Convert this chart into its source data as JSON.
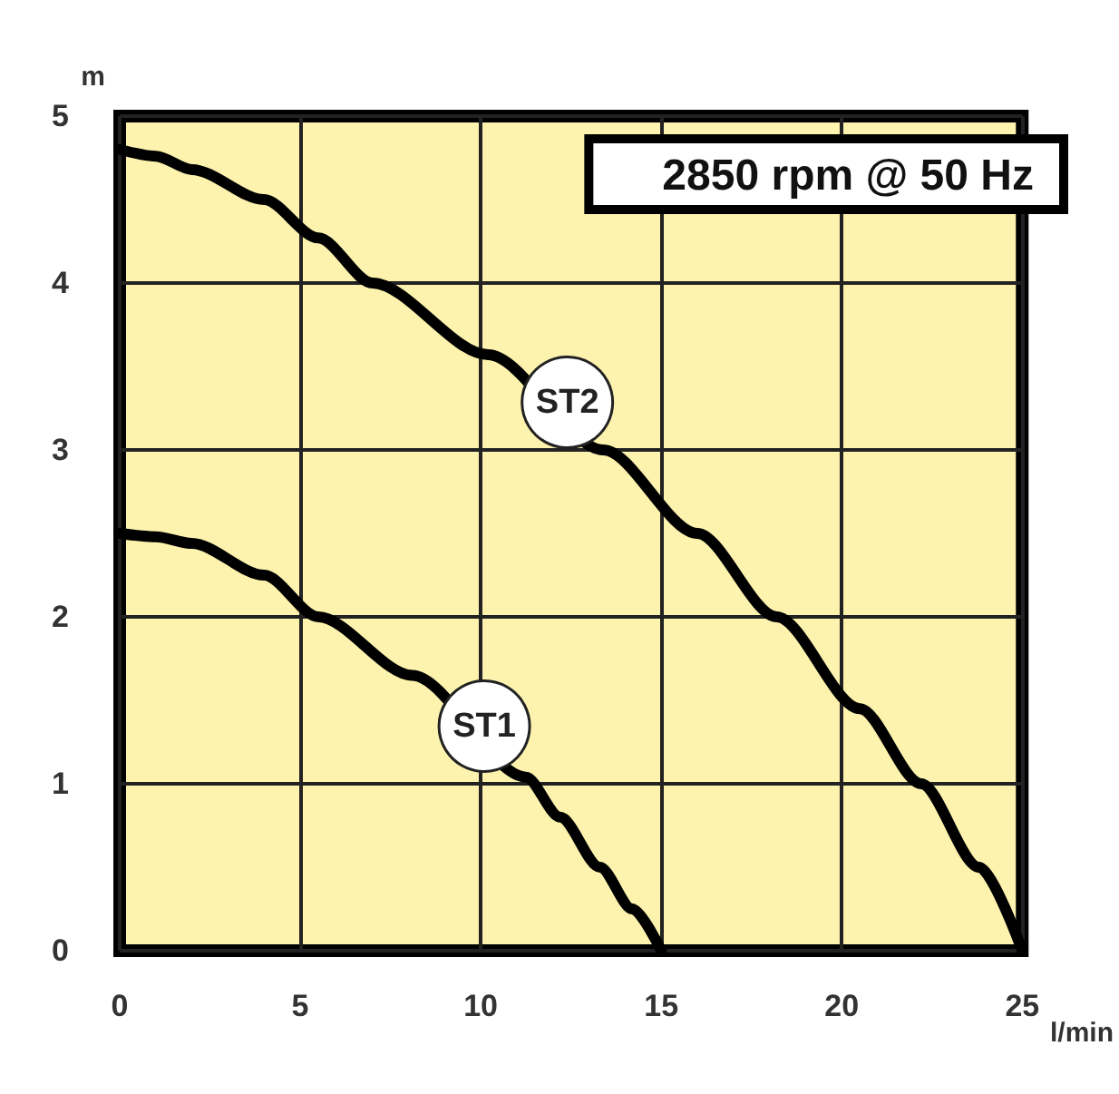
{
  "chart_data": {
    "type": "line",
    "xlabel": "l/min",
    "ylabel": "m",
    "annotations": [
      "2850 rpm @ 50 Hz"
    ],
    "xlim": [
      0,
      25
    ],
    "xticks": [
      0,
      5,
      10,
      15,
      20,
      25
    ],
    "ylim": [
      0,
      5
    ],
    "yticks": [
      0,
      1,
      2,
      3,
      4,
      5
    ],
    "grid": true,
    "series": [
      {
        "name": "ST1",
        "color": "#000000",
        "x": [
          0,
          1,
          2,
          4,
          5.5,
          8.1,
          10.1,
          11.25,
          12.2,
          13.3,
          14.2,
          15
        ],
        "values": [
          2.5,
          2.48,
          2.44,
          2.25,
          2.0,
          1.65,
          null,
          1.04,
          0.8,
          0.5,
          0.25,
          0
        ]
      },
      {
        "name": "ST2",
        "color": "#000000",
        "x": [
          0,
          1,
          2,
          4,
          5.5,
          7,
          10.2,
          12.4,
          13.4,
          16,
          18.2,
          20.5,
          22.2,
          23.8,
          25
        ],
        "values": [
          4.8,
          4.76,
          4.68,
          4.5,
          4.27,
          4.0,
          3.57,
          null,
          3.0,
          2.5,
          2.0,
          1.45,
          1.0,
          0.5,
          0
        ]
      }
    ]
  }
}
